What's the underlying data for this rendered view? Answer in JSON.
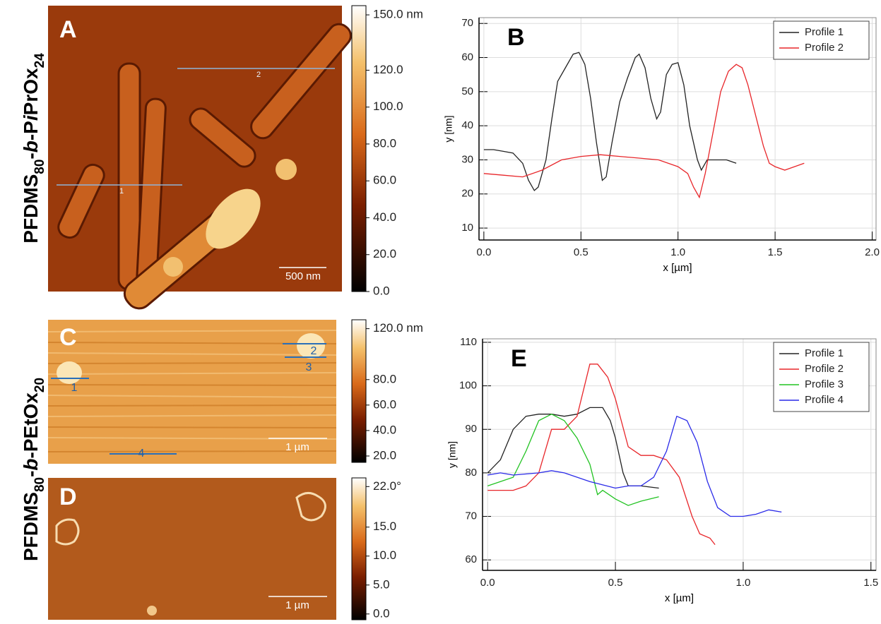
{
  "sample_labels": [
    [
      "PFDMS",
      "80",
      "-",
      "b",
      "-P",
      "i",
      "PrOx",
      "24"
    ],
    [
      "PFDMS",
      "80",
      "-",
      "b",
      "-PEtOx",
      "20"
    ]
  ],
  "images": [
    {
      "label": "A",
      "scale_bar": "500 nm",
      "profile_labels": [
        "1",
        "2"
      ],
      "colorbar": {
        "clim": [
          0,
          155
        ],
        "ticks": [
          {
            "value": 150,
            "label": "150.0 nm"
          },
          {
            "value": 120,
            "label": "120.0"
          },
          {
            "value": 100,
            "label": "100.0"
          },
          {
            "value": 80,
            "label": "80.0"
          },
          {
            "value": 60,
            "label": "60.0"
          },
          {
            "value": 40,
            "label": "40.0"
          },
          {
            "value": 20,
            "label": "20.0"
          },
          {
            "value": 0,
            "label": "0.0"
          }
        ]
      }
    },
    {
      "label": "C",
      "scale_bar": "1 µm",
      "profile_labels": [
        "1",
        "2",
        "3",
        "4"
      ],
      "colorbar": {
        "clim": [
          15,
          127
        ],
        "ticks": [
          {
            "value": 120,
            "label": "120.0 nm"
          },
          {
            "value": 80,
            "label": "80.0"
          },
          {
            "value": 60,
            "label": "60.0"
          },
          {
            "value": 40,
            "label": "40.0"
          },
          {
            "value": 20,
            "label": "20.0"
          }
        ]
      }
    },
    {
      "label": "D",
      "scale_bar": "1 µm",
      "colorbar": {
        "clim": [
          -1,
          23.5
        ],
        "ticks": [
          {
            "value": 22,
            "label": "22.0°"
          },
          {
            "value": 15,
            "label": "15.0"
          },
          {
            "value": 10,
            "label": "10.0"
          },
          {
            "value": 5,
            "label": "5.0"
          },
          {
            "value": 0,
            "label": "0.0"
          }
        ]
      }
    }
  ],
  "chart_data": [
    {
      "type": "line",
      "label": "B",
      "x_label": "x [µm]",
      "y_label": "y [nm]",
      "grid": true,
      "legend": "top-right",
      "xlim": [
        -0.025,
        2.02
      ],
      "ylim": [
        6.5,
        71.7
      ],
      "xticks": [
        {
          "value": 0,
          "label": "0.0"
        },
        0.5,
        {
          "value": 1,
          "label": "1.0"
        },
        1.5,
        {
          "value": 2,
          "label": "2.0"
        }
      ],
      "yticks": [
        10,
        20,
        30,
        40,
        50,
        60,
        70
      ],
      "series": [
        {
          "name": "Profile 1",
          "color": "#222222",
          "x": [
            0,
            0.05,
            0.1,
            0.15,
            0.2,
            0.23,
            0.26,
            0.28,
            0.32,
            0.35,
            0.38,
            0.42,
            0.46,
            0.49,
            0.52,
            0.55,
            0.58,
            0.61,
            0.63,
            0.66,
            0.7,
            0.74,
            0.78,
            0.8,
            0.83,
            0.86,
            0.89,
            0.91,
            0.94,
            0.97,
            1.0,
            1.03,
            1.06,
            1.1,
            1.12,
            1.15,
            1.2,
            1.25,
            1.3
          ],
          "values": [
            33,
            33,
            32.5,
            32,
            29,
            24,
            21,
            22,
            30,
            42,
            53,
            57,
            61,
            61.5,
            58,
            48,
            35,
            24,
            25,
            35,
            47,
            54,
            60,
            61,
            57,
            48,
            42,
            44,
            55,
            58,
            58.5,
            52,
            40,
            30,
            27,
            30,
            30,
            30,
            29
          ]
        },
        {
          "name": "Profile 2",
          "color": "#e8262a",
          "x": [
            0,
            0.1,
            0.2,
            0.3,
            0.4,
            0.5,
            0.6,
            0.7,
            0.8,
            0.9,
            1.0,
            1.05,
            1.08,
            1.11,
            1.14,
            1.18,
            1.22,
            1.26,
            1.3,
            1.33,
            1.36,
            1.4,
            1.44,
            1.47,
            1.5,
            1.55,
            1.6,
            1.65
          ],
          "values": [
            26,
            25.5,
            25,
            27,
            30,
            31,
            31.5,
            31,
            30.5,
            30,
            28,
            26,
            22,
            19,
            26,
            38,
            50,
            56,
            58,
            57,
            52,
            43,
            34,
            29,
            28,
            27,
            28,
            29
          ]
        }
      ]
    },
    {
      "type": "line",
      "label": "E",
      "x_label": "x [µm]",
      "y_label": "y [nm]",
      "grid": true,
      "legend": "top-right",
      "xlim": [
        -0.02,
        1.52
      ],
      "ylim": [
        57.6,
        110.8
      ],
      "xticks": [
        {
          "value": 0,
          "label": "0.0"
        },
        0.5,
        {
          "value": 1,
          "label": "1.0"
        },
        1.5
      ],
      "yticks": [
        60,
        70,
        80,
        90,
        100,
        110
      ],
      "series": [
        {
          "name": "Profile 1",
          "color": "#222222",
          "x": [
            0,
            0.05,
            0.1,
            0.15,
            0.2,
            0.25,
            0.3,
            0.35,
            0.4,
            0.45,
            0.48,
            0.5,
            0.53,
            0.55,
            0.6,
            0.67
          ],
          "values": [
            80,
            83,
            90,
            93,
            93.5,
            93.5,
            93,
            93.5,
            95,
            95,
            92,
            88,
            80,
            77,
            77,
            76.5
          ]
        },
        {
          "name": "Profile 2",
          "color": "#e8262a",
          "x": [
            0,
            0.1,
            0.15,
            0.2,
            0.25,
            0.3,
            0.35,
            0.4,
            0.43,
            0.47,
            0.5,
            0.55,
            0.6,
            0.65,
            0.7,
            0.75,
            0.8,
            0.83,
            0.87,
            0.89
          ],
          "values": [
            76,
            76,
            77,
            80,
            90,
            90,
            93,
            105,
            105,
            102,
            97,
            86,
            84,
            84,
            83,
            79,
            70,
            66,
            65,
            63.5
          ]
        },
        {
          "name": "Profile 3",
          "color": "#22c322",
          "x": [
            0,
            0.05,
            0.1,
            0.15,
            0.2,
            0.25,
            0.3,
            0.35,
            0.4,
            0.43,
            0.45,
            0.5,
            0.55,
            0.6,
            0.67
          ],
          "values": [
            77,
            78,
            79,
            85,
            92,
            93.5,
            92,
            88,
            82,
            75,
            76,
            74,
            72.5,
            73.5,
            74.5
          ]
        },
        {
          "name": "Profile 4",
          "color": "#2a2ae8",
          "x": [
            0,
            0.05,
            0.1,
            0.2,
            0.25,
            0.3,
            0.4,
            0.5,
            0.55,
            0.6,
            0.65,
            0.7,
            0.74,
            0.78,
            0.82,
            0.86,
            0.9,
            0.95,
            1.0,
            1.05,
            1.1,
            1.15
          ],
          "values": [
            79.5,
            80,
            79.5,
            80,
            80.5,
            80,
            78,
            76.5,
            77,
            77,
            79,
            85,
            93,
            92,
            87,
            78,
            72,
            70,
            70,
            70.5,
            71.5,
            71
          ]
        }
      ]
    }
  ]
}
